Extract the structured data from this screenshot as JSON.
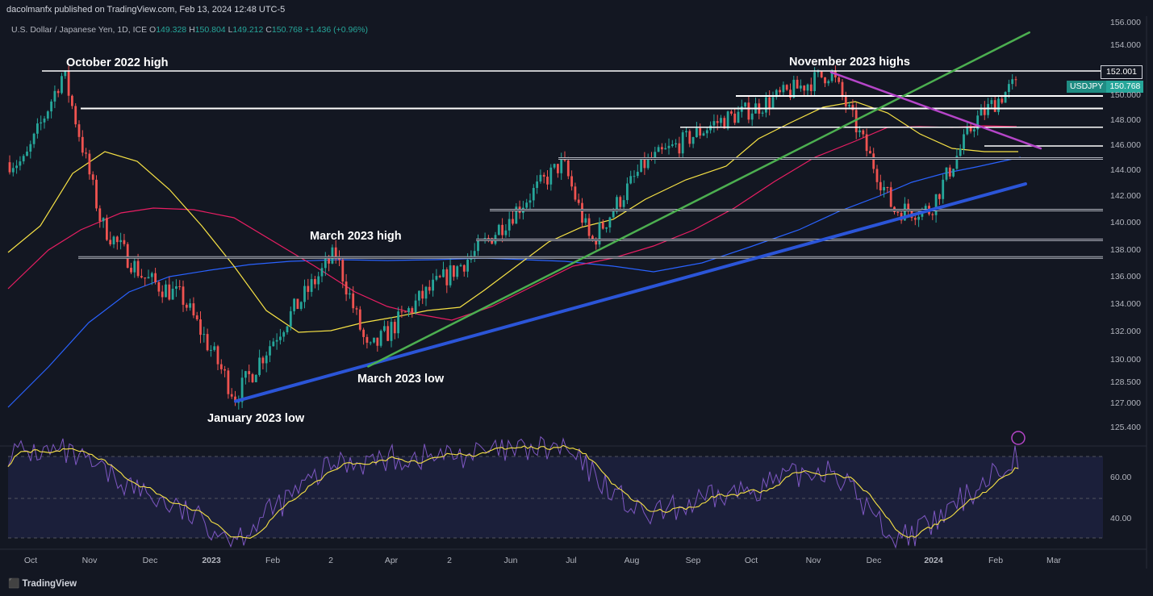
{
  "publisher": "dacolmanfx published on TradingView.com, Feb 13, 2024 12:48 UTC-5",
  "symbol": {
    "name": "U.S. Dollar / Japanese Yen, 1D, ICE",
    "o_label": "O",
    "o": "149.328",
    "h_label": "H",
    "h": "150.804",
    "l_label": "L",
    "l": "149.212",
    "c_label": "C",
    "c": "150.768",
    "change": "+1.436 (+0.96%)"
  },
  "annotations": {
    "oct2022": "October 2022 high",
    "nov2023": "November 2023 highs",
    "mar2023high": "March 2023 high",
    "mar2023low": "March 2023 low",
    "jan2023low": "January 2023 low"
  },
  "price_tags": {
    "level": "152.001",
    "symbol": "USDJPY",
    "last": "150.768"
  },
  "y_axis_labels": [
    "156.000",
    "154.000",
    "152.000",
    "150.000",
    "148.000",
    "146.000",
    "144.000",
    "142.000",
    "140.000",
    "138.000",
    "136.000",
    "134.000",
    "132.000",
    "130.000",
    "128.500",
    "127.000",
    "125.400"
  ],
  "rsi_axis_labels": [
    "60.00",
    "40.00"
  ],
  "x_axis_labels": [
    "Oct",
    "Nov",
    "Dec",
    "2023",
    "Feb",
    "2",
    "Apr",
    "2",
    "Jun",
    "Jul",
    "Aug",
    "Sep",
    "Oct",
    "Nov",
    "Dec",
    "2024",
    "Feb",
    "Mar"
  ],
  "footer": {
    "logo": "TradingView"
  },
  "colors": {
    "background": "#131722",
    "up": "#26a69a",
    "down": "#ef5350",
    "ma_short": "#f7e245",
    "ma_mid": "#e91e63",
    "ma_long": "#2962ff",
    "trend_blue": "#2b55d8",
    "trend_green": "#4caf50",
    "trend_purple": "#b545c8",
    "rsi": "#7e57c2",
    "rsi_ma": "#f7e245"
  },
  "chart_data": {
    "type": "candlestick",
    "instrument": "USDJPY",
    "timeframe": "1D",
    "ylim": [
      125.4,
      156.0
    ],
    "x_range": [
      "2022-10",
      "2024-03"
    ],
    "series": [
      {
        "type": "close",
        "x": [
          "2022-10-01",
          "2022-10-21",
          "2022-11-10",
          "2022-12-01",
          "2022-12-20",
          "2023-01-16",
          "2023-02-10",
          "2023-03-08",
          "2023-03-24",
          "2023-04-20",
          "2023-05-18",
          "2023-06-30",
          "2023-07-14",
          "2023-08-10",
          "2023-09-15",
          "2023-10-05",
          "2023-11-13",
          "2023-12-14",
          "2024-01-02",
          "2024-01-24",
          "2024-02-13"
        ],
        "values": [
          144.7,
          151.9,
          140.0,
          136.0,
          134.5,
          127.5,
          132.5,
          137.8,
          130.5,
          134.5,
          138.0,
          144.7,
          138.5,
          144.5,
          147.8,
          149.0,
          151.9,
          141.0,
          141.0,
          148.0,
          150.768
        ]
      }
    ],
    "horizontal_levels": [
      152.0,
      150.0,
      149.0,
      147.5,
      146.0,
      145.0,
      141.0,
      138.8,
      137.5
    ],
    "trendlines": [
      {
        "name": "",
        "from": [
          "2023-01-16",
          127.2
        ],
        "to": [
          "2024-02-20",
          143.0
        ]
      },
      {
        "name": "",
        "from": [
          "2023-03-24",
          129.6
        ],
        "to": [
          "2024-02-22",
          155.2
        ]
      },
      {
        "name": "",
        "from": [
          "2023-11-13",
          151.9
        ],
        "to": [
          "2024-02-28",
          145.8
        ]
      }
    ],
    "rsi": {
      "x": [
        "2022-10-21",
        "2023-01-16",
        "2023-03-08",
        "2023-06-30",
        "2023-08-10",
        "2023-11-13",
        "2023-12-14",
        "2024-01-02",
        "2024-02-13"
      ],
      "values": [
        72,
        30,
        67,
        74,
        40,
        65,
        30,
        35,
        70
      ]
    }
  }
}
